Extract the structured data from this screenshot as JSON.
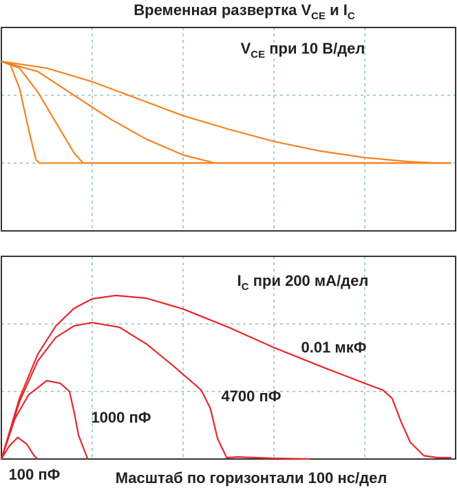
{
  "title": [
    "Временная развертка V",
    "CE",
    " и I",
    "C"
  ],
  "chart_data": [
    {
      "type": "line",
      "label": [
        "V",
        "CE",
        " при 10 В/дел"
      ],
      "xlim": [
        0,
        5
      ],
      "ylim": [
        0,
        3
      ],
      "xticks": [
        0,
        1,
        2,
        3,
        4,
        5
      ],
      "yticks": [
        0,
        1,
        2,
        3
      ],
      "grid": true,
      "tick_labels": false,
      "series": [
        {
          "color": "#f5821f",
          "x": [
            0,
            0.1,
            0.2,
            0.3,
            0.38,
            0.42,
            4.95
          ],
          "values": [
            2.5,
            2.45,
            2.1,
            1.5,
            1.05,
            1.0,
            1.0
          ]
        },
        {
          "color": "#f5821f",
          "x": [
            0,
            0.2,
            0.4,
            0.6,
            0.8,
            0.9,
            4.95
          ],
          "values": [
            2.5,
            2.4,
            2.05,
            1.6,
            1.15,
            1.0,
            1.0
          ]
        },
        {
          "color": "#f5821f",
          "x": [
            0,
            0.4,
            0.8,
            1.2,
            1.6,
            2.0,
            2.35,
            4.95
          ],
          "values": [
            2.5,
            2.35,
            2.0,
            1.65,
            1.35,
            1.12,
            1.0,
            1.0
          ]
        },
        {
          "color": "#f5821f",
          "x": [
            0,
            0.5,
            1,
            1.5,
            2,
            2.5,
            3,
            3.5,
            4,
            4.5,
            4.8,
            4.95
          ],
          "values": [
            2.5,
            2.4,
            2.2,
            1.95,
            1.7,
            1.5,
            1.32,
            1.18,
            1.08,
            1.02,
            1.0,
            1.0
          ]
        }
      ]
    },
    {
      "type": "line",
      "label": [
        "I",
        "C",
        " при 200 мА/дел"
      ],
      "x_label": "Масштаб по горизонтали 100 нс/дел",
      "xlim": [
        0,
        5
      ],
      "ylim": [
        0,
        3
      ],
      "xticks": [
        0,
        1,
        2,
        3,
        4,
        5
      ],
      "yticks": [
        0,
        1,
        2,
        3
      ],
      "grid": true,
      "tick_labels": false,
      "series": [
        {
          "name": "100 пФ",
          "color": "#e8262a",
          "x": [
            0,
            0.08,
            0.18,
            0.28,
            0.36,
            0.4
          ],
          "values": [
            0,
            0.18,
            0.32,
            0.22,
            0.05,
            0
          ]
        },
        {
          "name": "1000 пФ",
          "color": "#e8262a",
          "x": [
            0,
            0.15,
            0.3,
            0.5,
            0.65,
            0.75,
            0.8,
            0.85,
            0.95
          ],
          "values": [
            0,
            0.6,
            0.95,
            1.16,
            1.12,
            1.0,
            0.7,
            0.35,
            0
          ]
        },
        {
          "name": "4700 пФ",
          "color": "#e8262a",
          "x": [
            0,
            0.2,
            0.4,
            0.6,
            0.8,
            1.0,
            1.3,
            1.6,
            1.9,
            2.2,
            2.3,
            2.38,
            2.48,
            2.6,
            3.0,
            3.4
          ],
          "values": [
            0,
            0.85,
            1.45,
            1.8,
            1.97,
            2.02,
            1.95,
            1.7,
            1.37,
            1.02,
            0.75,
            0.3,
            0.02,
            0.03,
            0.01,
            0
          ]
        },
        {
          "name": "0.01 мкФ",
          "color": "#e8262a",
          "x": [
            0,
            0.2,
            0.4,
            0.6,
            0.8,
            1.0,
            1.26,
            1.6,
            2.0,
            2.5,
            3.0,
            3.5,
            4.0,
            4.2,
            4.3,
            4.4,
            4.5,
            4.65,
            4.8,
            4.95
          ],
          "values": [
            0,
            0.9,
            1.55,
            1.97,
            2.23,
            2.37,
            2.42,
            2.38,
            2.22,
            1.95,
            1.65,
            1.38,
            1.12,
            1.02,
            0.9,
            0.55,
            0.25,
            0.05,
            0.02,
            0.02
          ]
        }
      ]
    }
  ]
}
